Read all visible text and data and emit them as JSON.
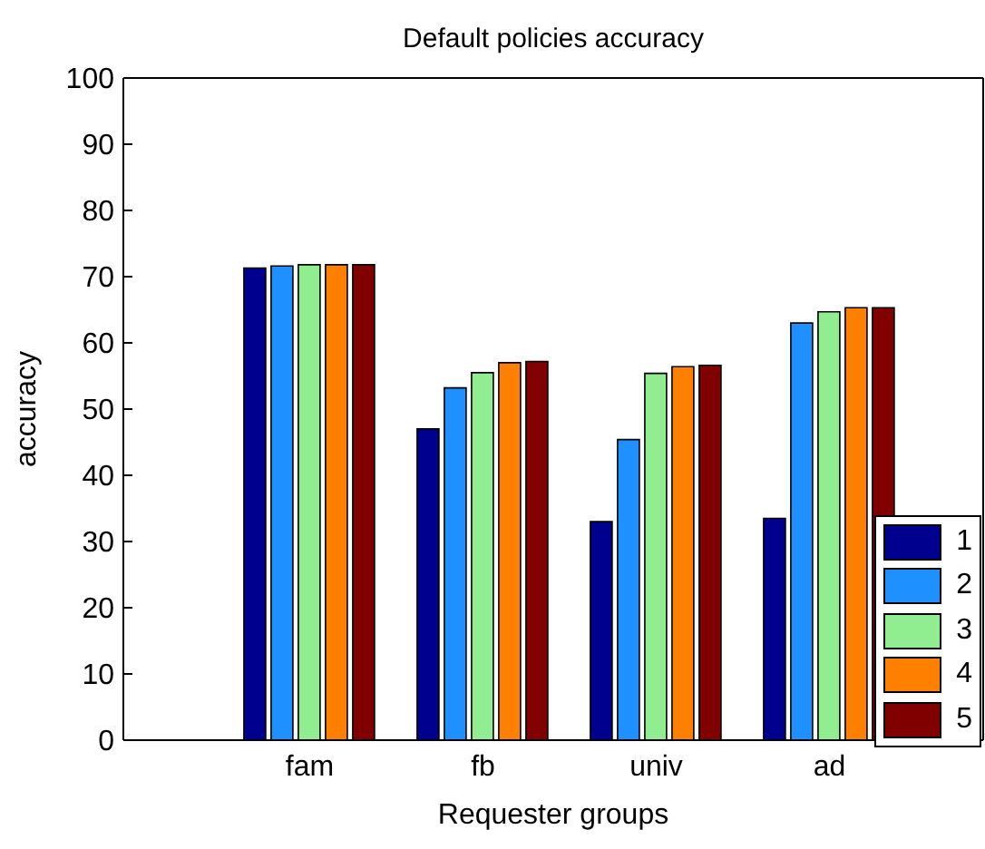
{
  "chart_data": {
    "type": "bar",
    "title": "Default policies accuracy",
    "xlabel": "Requester groups",
    "ylabel": "accuracy",
    "categories": [
      "fam",
      "fb",
      "univ",
      "ad"
    ],
    "series": [
      {
        "name": "1",
        "color": "#00008f",
        "values": [
          71.3,
          47,
          33,
          33.5
        ]
      },
      {
        "name": "2",
        "color": "#1e90ff",
        "values": [
          71.6,
          53.2,
          45.4,
          63
        ]
      },
      {
        "name": "3",
        "color": "#90ee90",
        "values": [
          71.8,
          55.5,
          55.4,
          64.7
        ]
      },
      {
        "name": "4",
        "color": "#ff8000",
        "values": [
          71.8,
          57,
          56.4,
          65.3
        ]
      },
      {
        "name": "5",
        "color": "#800000",
        "values": [
          71.8,
          57.2,
          56.6,
          65.3
        ]
      }
    ],
    "ylim": [
      0,
      100
    ],
    "yticks": [
      0,
      10,
      20,
      30,
      40,
      50,
      60,
      70,
      80,
      90,
      100
    ],
    "legend": "bottom right"
  }
}
